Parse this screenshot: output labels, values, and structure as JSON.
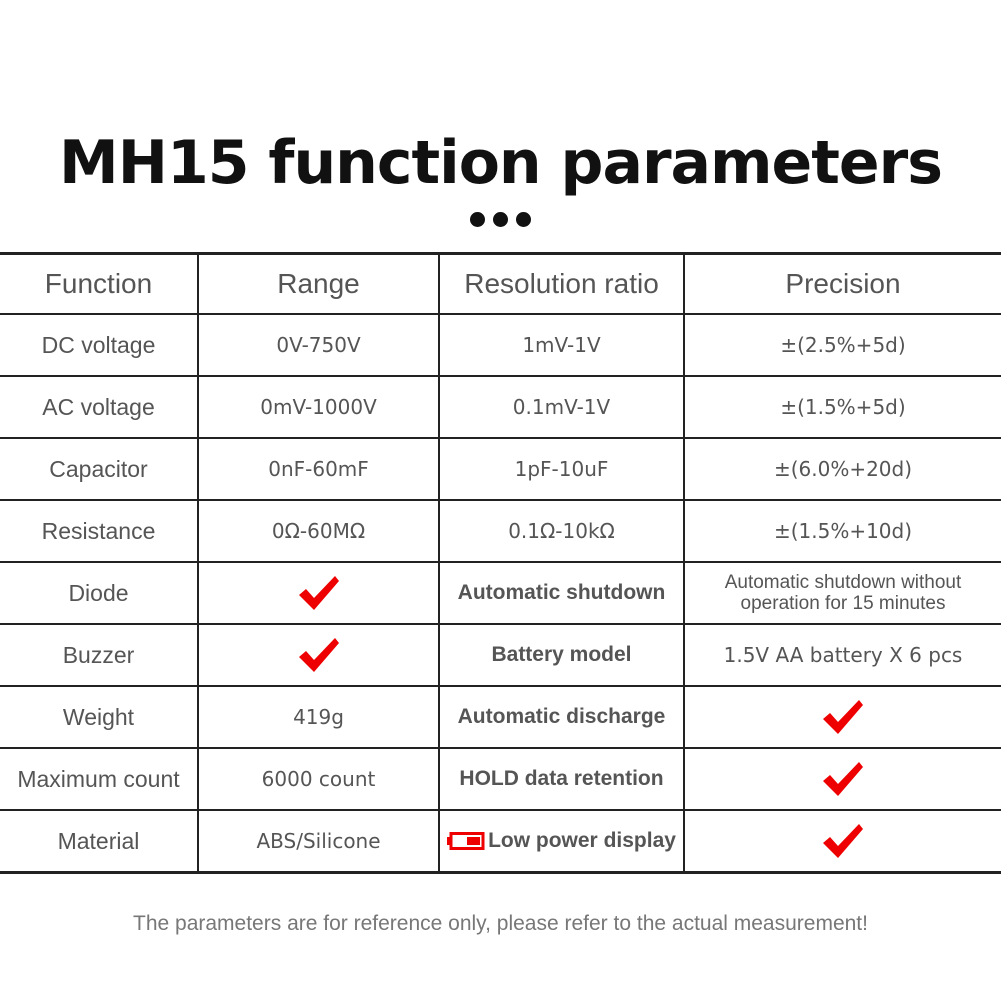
{
  "title": "MH15 function parameters",
  "table": {
    "headers": [
      "Function",
      "Range",
      "Resolution ratio",
      "Precision"
    ],
    "rows": [
      {
        "function": "DC voltage",
        "range": "0V-750V",
        "resolution": "1mV-1V",
        "precision": "±(2.5%+5d)"
      },
      {
        "function": "AC voltage",
        "range": "0mV-1000V",
        "resolution": "0.1mV-1V",
        "precision": "±(1.5%+5d)"
      },
      {
        "function": "Capacitor",
        "range": "0nF-60mF",
        "resolution": "1pF-10uF",
        "precision": "±(6.0%+20d)"
      },
      {
        "function": "Resistance",
        "range": "0Ω-60MΩ",
        "resolution": "0.1Ω-10kΩ",
        "precision": "±(1.5%+10d)"
      },
      {
        "function": "Diode",
        "range_check": true,
        "feature": "Automatic shutdown",
        "feature_value_line1": "Automatic shutdown without",
        "feature_value_line2": "operation for 15 minutes"
      },
      {
        "function": "Buzzer",
        "range_check": true,
        "feature": "Battery model",
        "feature_value": "1.5V AA battery X 6 pcs"
      },
      {
        "function": "Weight",
        "range": "419g",
        "feature": "Automatic discharge",
        "feature_check": true
      },
      {
        "function": "Maximum count",
        "range": "6000 count",
        "feature": "HOLD data retention",
        "feature_check": true
      },
      {
        "function": "Material",
        "range": "ABS/Silicone",
        "feature": "Low power display",
        "feature_check": true
      }
    ]
  },
  "footer": "The parameters are for reference only, please refer to the actual measurement!",
  "colors": {
    "accent_red": "#e00000",
    "text": "#555555",
    "border": "#222222"
  },
  "icons": [
    "checkmark-icon",
    "low-battery-icon",
    "more-dots-icon"
  ]
}
